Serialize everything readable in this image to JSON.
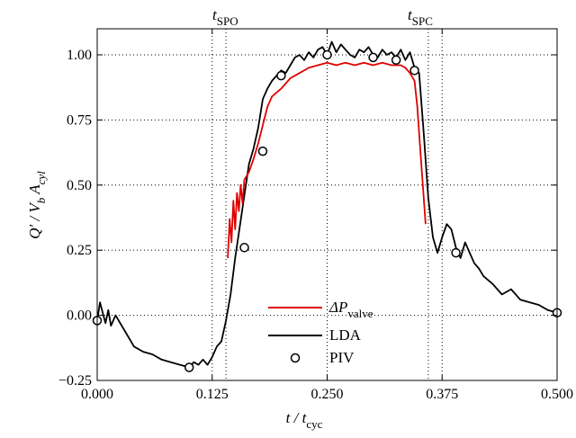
{
  "chart_data": {
    "type": "line",
    "xlim": [
      0,
      0.5
    ],
    "ylim": [
      -0.25,
      1.1
    ],
    "x_ticks": [
      "0.000",
      "0.125",
      "0.250",
      "0.375",
      "0.500"
    ],
    "x_tick_values": [
      0,
      0.125,
      0.25,
      0.375,
      0.5
    ],
    "y_ticks": [
      "−0.25",
      "0.00",
      "0.25",
      "0.50",
      "0.75",
      "1.00"
    ],
    "y_tick_values": [
      -0.25,
      0,
      0.25,
      0.5,
      0.75,
      1.0
    ],
    "grid": "dotted",
    "xlabel": {
      "main": "t / t",
      "sub": "cyc"
    },
    "ylabel": {
      "main": "Q′ / V",
      "sub1": "b",
      "mid": " A",
      "sub2": "cyl"
    },
    "markers": [
      {
        "main": "t",
        "sub": "SPO",
        "x": 0.14
      },
      {
        "main": "t",
        "sub": "SPC",
        "x": 0.36
      }
    ],
    "legend": {
      "position": "bottom-center",
      "entries": [
        {
          "main": "ΔP",
          "sub": "valve",
          "color": "#e00000",
          "style": "line"
        },
        {
          "main": "LDA",
          "sub": "",
          "color": "#000000",
          "style": "line"
        },
        {
          "main": "PIV",
          "sub": "",
          "color": "#000000",
          "style": "circle"
        }
      ]
    },
    "series": [
      {
        "name": "LDA",
        "color": "#000000",
        "x": [
          0.0,
          0.003,
          0.006,
          0.009,
          0.012,
          0.015,
          0.02,
          0.03,
          0.04,
          0.05,
          0.06,
          0.07,
          0.08,
          0.09,
          0.1,
          0.105,
          0.11,
          0.115,
          0.12,
          0.125,
          0.13,
          0.135,
          0.14,
          0.145,
          0.15,
          0.155,
          0.16,
          0.165,
          0.17,
          0.175,
          0.18,
          0.185,
          0.19,
          0.195,
          0.2,
          0.205,
          0.21,
          0.215,
          0.22,
          0.225,
          0.23,
          0.235,
          0.24,
          0.245,
          0.25,
          0.255,
          0.26,
          0.265,
          0.27,
          0.275,
          0.28,
          0.285,
          0.29,
          0.295,
          0.3,
          0.305,
          0.31,
          0.315,
          0.32,
          0.325,
          0.33,
          0.335,
          0.34,
          0.345,
          0.35,
          0.355,
          0.36,
          0.365,
          0.37,
          0.375,
          0.38,
          0.385,
          0.39,
          0.395,
          0.4,
          0.405,
          0.41,
          0.415,
          0.42,
          0.43,
          0.44,
          0.45,
          0.46,
          0.47,
          0.48,
          0.49,
          0.5
        ],
        "y": [
          -0.02,
          0.05,
          0.01,
          -0.03,
          0.02,
          -0.04,
          0.0,
          -0.06,
          -0.12,
          -0.14,
          -0.15,
          -0.17,
          -0.18,
          -0.19,
          -0.2,
          -0.18,
          -0.19,
          -0.17,
          -0.19,
          -0.16,
          -0.12,
          -0.1,
          -0.02,
          0.08,
          0.22,
          0.34,
          0.46,
          0.58,
          0.64,
          0.72,
          0.83,
          0.87,
          0.9,
          0.92,
          0.94,
          0.93,
          0.96,
          0.99,
          1.0,
          0.98,
          1.01,
          0.99,
          1.02,
          1.03,
          1.0,
          1.05,
          1.01,
          1.04,
          1.02,
          1.0,
          0.99,
          1.02,
          1.01,
          1.03,
          1.0,
          0.99,
          1.02,
          1.0,
          1.01,
          0.99,
          1.02,
          0.98,
          1.01,
          0.95,
          0.93,
          0.7,
          0.45,
          0.3,
          0.24,
          0.3,
          0.35,
          0.33,
          0.26,
          0.22,
          0.28,
          0.24,
          0.2,
          0.18,
          0.15,
          0.12,
          0.08,
          0.1,
          0.06,
          0.05,
          0.04,
          0.02,
          0.01
        ]
      },
      {
        "name": "ΔP valve",
        "color": "#e00000",
        "x": [
          0.142,
          0.144,
          0.146,
          0.148,
          0.15,
          0.152,
          0.154,
          0.156,
          0.158,
          0.16,
          0.165,
          0.17,
          0.175,
          0.18,
          0.185,
          0.19,
          0.2,
          0.21,
          0.22,
          0.23,
          0.24,
          0.25,
          0.26,
          0.27,
          0.28,
          0.29,
          0.3,
          0.31,
          0.32,
          0.33,
          0.335,
          0.34,
          0.345,
          0.348,
          0.351,
          0.354,
          0.357
        ],
        "y": [
          0.22,
          0.37,
          0.28,
          0.44,
          0.33,
          0.47,
          0.4,
          0.5,
          0.43,
          0.52,
          0.55,
          0.6,
          0.66,
          0.73,
          0.8,
          0.84,
          0.87,
          0.91,
          0.93,
          0.95,
          0.96,
          0.97,
          0.96,
          0.97,
          0.96,
          0.97,
          0.96,
          0.97,
          0.96,
          0.96,
          0.95,
          0.93,
          0.9,
          0.8,
          0.65,
          0.5,
          0.35
        ]
      }
    ],
    "piv_points": [
      {
        "x": 0.0,
        "y": -0.02
      },
      {
        "x": 0.1,
        "y": -0.2
      },
      {
        "x": 0.16,
        "y": 0.26
      },
      {
        "x": 0.18,
        "y": 0.63
      },
      {
        "x": 0.2,
        "y": 0.92
      },
      {
        "x": 0.25,
        "y": 1.0
      },
      {
        "x": 0.3,
        "y": 0.99
      },
      {
        "x": 0.325,
        "y": 0.98
      },
      {
        "x": 0.345,
        "y": 0.94
      },
      {
        "x": 0.39,
        "y": 0.24
      },
      {
        "x": 0.5,
        "y": 0.01
      }
    ]
  }
}
